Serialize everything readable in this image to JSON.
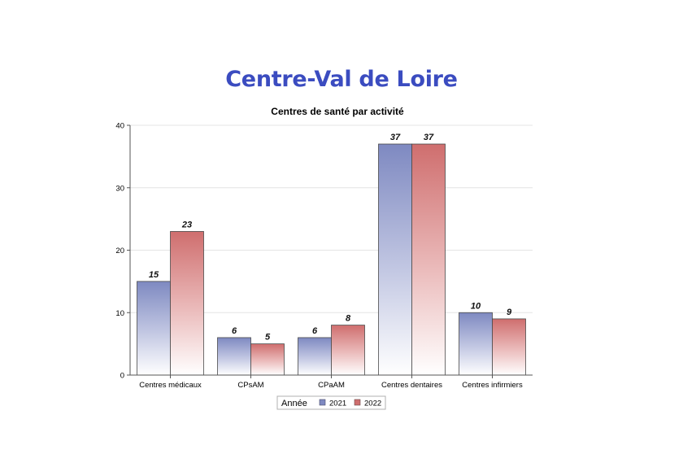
{
  "page": {
    "title": "Centre-Val de Loire"
  },
  "chart_data": {
    "type": "bar",
    "title": "Centres de santé par activité",
    "xlabel": "",
    "ylabel": "",
    "ylim": [
      0,
      40
    ],
    "yticks": [
      0,
      10,
      20,
      30,
      40
    ],
    "grid": true,
    "categories": [
      "Centres médicaux",
      "CPsAM",
      "CPaAM",
      "Centres dentaires",
      "Centres infirmiers"
    ],
    "legend_title": "Année",
    "legend_position": "bottom",
    "series": [
      {
        "name": "2021",
        "values": [
          15,
          6,
          6,
          37,
          10
        ],
        "color": "#7e89c1"
      },
      {
        "name": "2022",
        "values": [
          23,
          5,
          8,
          37,
          9
        ],
        "color": "#cf6e6e"
      }
    ]
  }
}
